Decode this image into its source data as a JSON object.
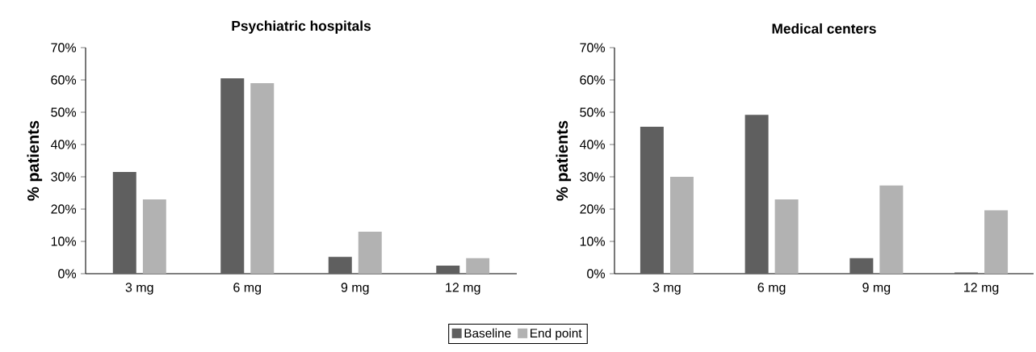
{
  "chart_data": [
    {
      "type": "bar",
      "title": "Psychiatric hospitals",
      "ylabel": "% patients",
      "categories": [
        "3 mg",
        "6 mg",
        "9 mg",
        "12 mg"
      ],
      "series": [
        {
          "color": "#5f5f5f",
          "values": [
            31.5,
            60.5,
            5.2,
            2.5
          ]
        },
        {
          "color": "#b2b2b2",
          "values": [
            23,
            59,
            13,
            4.8
          ]
        }
      ],
      "ylim": [
        0,
        70
      ],
      "yticks": [
        {
          "value": 0,
          "label": "0%"
        },
        {
          "value": 10,
          "label": "10%"
        },
        {
          "value": 20,
          "label": "20%"
        },
        {
          "value": 30,
          "label": "30%"
        },
        {
          "value": 40,
          "label": "40%"
        },
        {
          "value": 50,
          "label": "50%"
        },
        {
          "value": 60,
          "label": "60%"
        },
        {
          "value": 70,
          "label": "70%"
        }
      ]
    },
    {
      "type": "bar",
      "title": "Medical centers",
      "ylabel": "% patients",
      "categories": [
        "3 mg",
        "6 mg",
        "9 mg",
        "12 mg"
      ],
      "series": [
        {
          "name": "Baseline",
          "color": "#5f5f5f",
          "values": [
            45.5,
            49.2,
            4.8,
            0.4
          ]
        },
        {
          "name": "End point",
          "color": "#b2b2b2",
          "values": [
            30,
            23,
            27.3,
            19.6
          ]
        }
      ],
      "ylim": [
        0,
        70
      ],
      "yticks": [
        {
          "value": 0,
          "label": "0%"
        },
        {
          "value": 10,
          "label": "10%"
        },
        {
          "value": 20,
          "label": "20%"
        },
        {
          "value": 30,
          "label": "30%"
        },
        {
          "value": 40,
          "label": "40%"
        },
        {
          "value": 50,
          "label": "50%"
        },
        {
          "value": 60,
          "label": "60%"
        },
        {
          "value": 70,
          "label": "70%"
        }
      ],
      "legend": "bottom"
    }
  ]
}
